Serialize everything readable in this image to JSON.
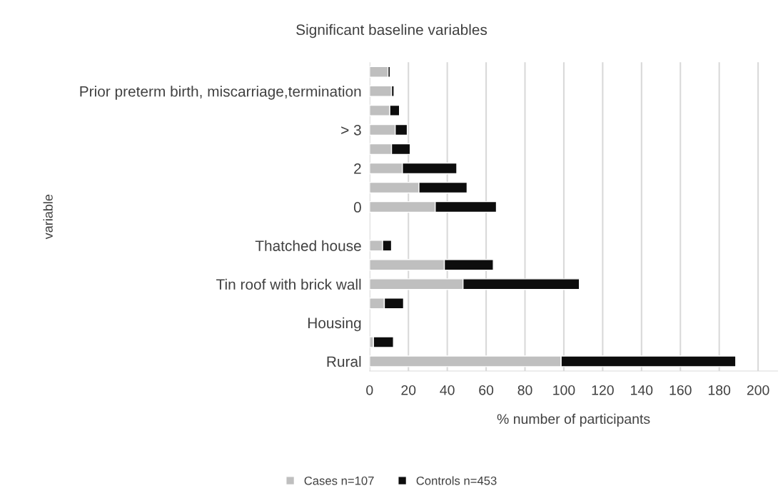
{
  "chart_data": {
    "type": "bar",
    "orientation": "horizontal",
    "stacked": true,
    "title": "Significant baseline variables",
    "xlabel": "% number of participants",
    "ylabel": "variable",
    "categories": [
      null,
      "Prior preterm birth, miscarriage,termination",
      null,
      "> 3",
      null,
      "2",
      null,
      "0",
      null,
      "Thatched house",
      null,
      "Tin roof with brick wall",
      null,
      "Housing",
      null,
      "Rural"
    ],
    "series": [
      {
        "name": "Cases n=107",
        "color": "#bfbfbf",
        "values": [
          9.5,
          11.3,
          10.4,
          13.2,
          11.3,
          16.9,
          25.4,
          33.8,
          null,
          6.7,
          38.5,
          48.1,
          7.6,
          null,
          2.0,
          98.6
        ]
      },
      {
        "name": "Controls n=453",
        "color": "#0d0d0d",
        "values": [
          1.1,
          1.3,
          5.0,
          6.2,
          9.6,
          28.0,
          24.8,
          31.5,
          null,
          4.6,
          25.2,
          59.9,
          9.9,
          null,
          10.3,
          89.9
        ]
      }
    ],
    "xlim": [
      0,
      210
    ],
    "xticks": [
      0,
      20,
      40,
      60,
      80,
      100,
      120,
      140,
      160,
      180,
      200
    ],
    "grid": "x",
    "legend": "bottom"
  }
}
